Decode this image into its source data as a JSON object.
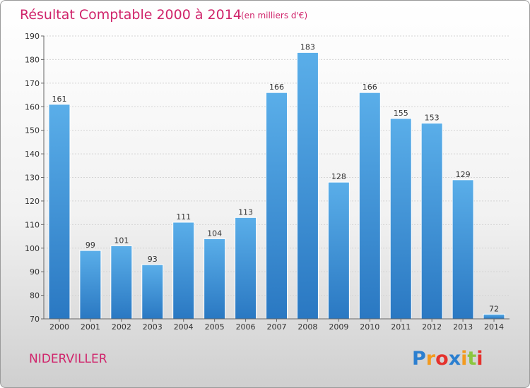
{
  "chart_data": {
    "type": "bar",
    "title": "Résultat Comptable 2000 à 2014",
    "subtitle": "(en milliers d'€)",
    "categories": [
      "2000",
      "2001",
      "2002",
      "2003",
      "2004",
      "2005",
      "2006",
      "2007",
      "2008",
      "2009",
      "2010",
      "2011",
      "2012",
      "2013",
      "2014"
    ],
    "values": [
      161,
      99,
      101,
      93,
      111,
      104,
      113,
      166,
      183,
      128,
      166,
      155,
      153,
      129,
      72
    ],
    "ylim": [
      70,
      190
    ],
    "yticks": [
      70,
      80,
      90,
      100,
      110,
      120,
      130,
      140,
      150,
      160,
      170,
      180,
      190
    ],
    "xlabel": "",
    "ylabel": "",
    "grid": true,
    "bar_color": "#3a8fd6"
  },
  "town": "NIDERVILLER",
  "logo": {
    "letters": [
      "P",
      "r",
      "o",
      "x",
      "i",
      "t",
      "i"
    ],
    "colors": [
      "#2b7fd0",
      "#f39a1e",
      "#e5322d",
      "#2b7fd0",
      "#f39a1e",
      "#8cc63f",
      "#e5322d"
    ]
  }
}
